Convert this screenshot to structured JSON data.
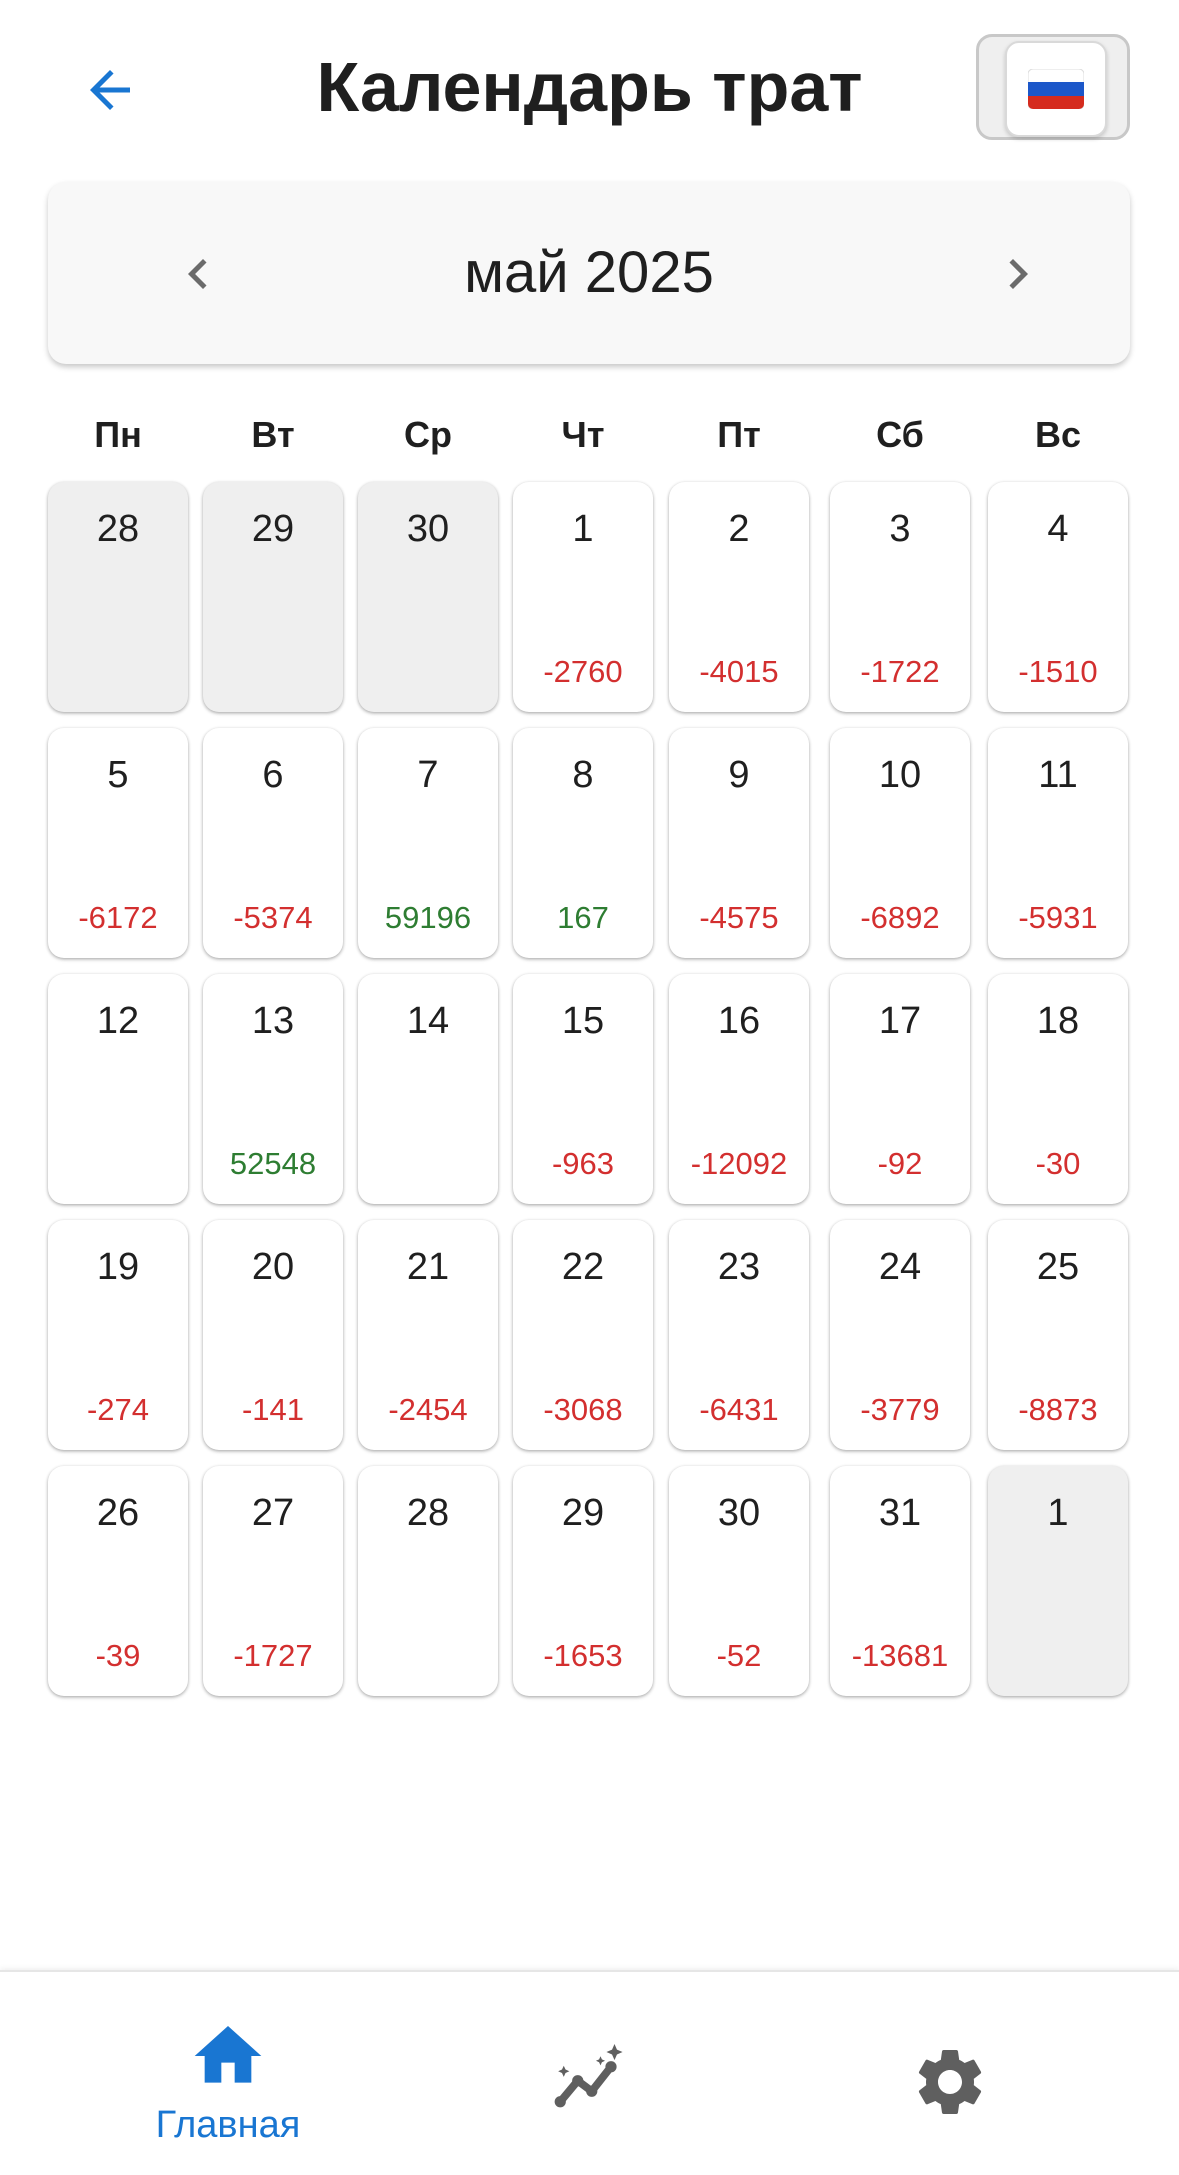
{
  "header": {
    "title": "Календарь трат",
    "language_flag": "🇷🇺"
  },
  "month": {
    "label": "май 2025"
  },
  "weekdays": [
    "Пн",
    "Вт",
    "Ср",
    "Чт",
    "Пт",
    "Сб",
    "Вс"
  ],
  "weeks": [
    [
      {
        "day": "28",
        "amount": "",
        "outside": true
      },
      {
        "day": "29",
        "amount": "",
        "outside": true
      },
      {
        "day": "30",
        "amount": "",
        "outside": true
      },
      {
        "day": "1",
        "amount": "-2760"
      },
      {
        "day": "2",
        "amount": "-4015"
      },
      {
        "day": "3",
        "amount": "-1722"
      },
      {
        "day": "4",
        "amount": "-1510"
      }
    ],
    [
      {
        "day": "5",
        "amount": "-6172"
      },
      {
        "day": "6",
        "amount": "-5374"
      },
      {
        "day": "7",
        "amount": "59196"
      },
      {
        "day": "8",
        "amount": "167"
      },
      {
        "day": "9",
        "amount": "-4575"
      },
      {
        "day": "10",
        "amount": "-6892"
      },
      {
        "day": "11",
        "amount": "-5931"
      }
    ],
    [
      {
        "day": "12",
        "amount": ""
      },
      {
        "day": "13",
        "amount": "52548"
      },
      {
        "day": "14",
        "amount": ""
      },
      {
        "day": "15",
        "amount": "-963"
      },
      {
        "day": "16",
        "amount": "-12092"
      },
      {
        "day": "17",
        "amount": "-92"
      },
      {
        "day": "18",
        "amount": "-30"
      }
    ],
    [
      {
        "day": "19",
        "amount": "-274"
      },
      {
        "day": "20",
        "amount": "-141"
      },
      {
        "day": "21",
        "amount": "-2454"
      },
      {
        "day": "22",
        "amount": "-3068"
      },
      {
        "day": "23",
        "amount": "-6431"
      },
      {
        "day": "24",
        "amount": "-3779"
      },
      {
        "day": "25",
        "amount": "-8873"
      }
    ],
    [
      {
        "day": "26",
        "amount": "-39"
      },
      {
        "day": "27",
        "amount": "-1727"
      },
      {
        "day": "28",
        "amount": ""
      },
      {
        "day": "29",
        "amount": "-1653"
      },
      {
        "day": "30",
        "amount": "-52"
      },
      {
        "day": "31",
        "amount": "-13681"
      },
      {
        "day": "1",
        "amount": "",
        "outside": true
      }
    ]
  ],
  "bottom_nav": {
    "items": [
      {
        "icon": "home-icon",
        "label": "Главная",
        "active": true
      },
      {
        "icon": "analytics-icon",
        "label": ""
      },
      {
        "icon": "gear-icon",
        "label": ""
      }
    ]
  },
  "colors": {
    "accent": "#1976d2",
    "negative": "#d32f2f",
    "positive": "#2e7d32",
    "icon_gray": "#5f5f5f",
    "outside_cell": "#efefef"
  }
}
